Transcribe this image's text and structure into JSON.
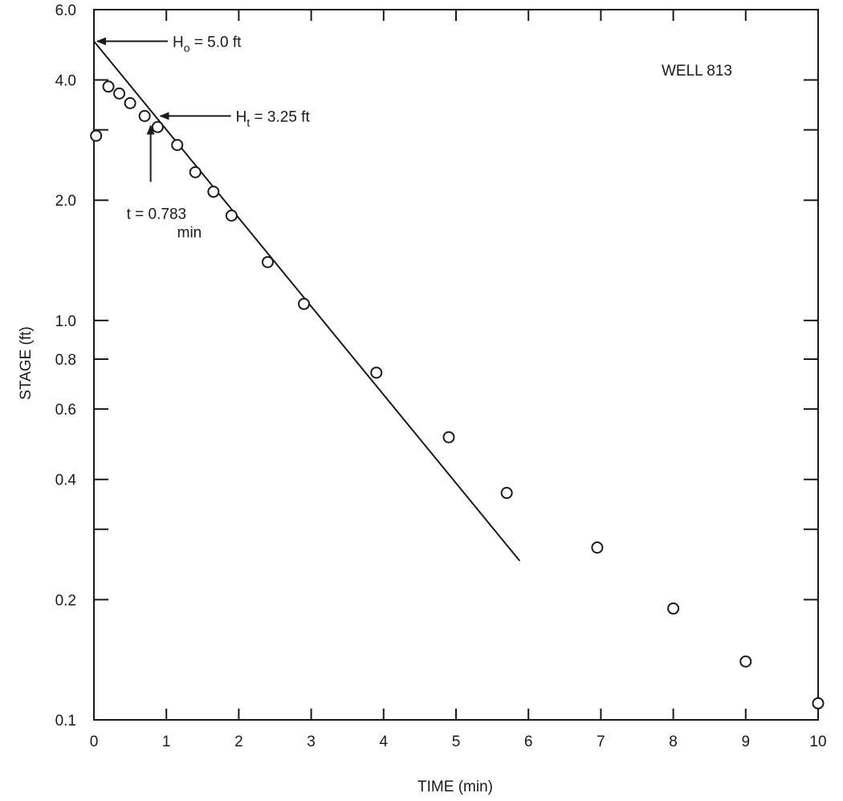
{
  "chart_data": {
    "type": "scatter",
    "title": "WELL 813",
    "xlabel": "TIME (min)",
    "ylabel": "STAGE (ft)",
    "xlim": [
      0,
      10
    ],
    "ylim": [
      0.1,
      6.0
    ],
    "y_scale": "log",
    "grid": false,
    "x_ticks": [
      "0",
      "1",
      "2",
      "3",
      "4",
      "5",
      "6",
      "7",
      "8",
      "9",
      "10"
    ],
    "y_tick_labels": [
      {
        "value": 6.0,
        "label": "6.0"
      },
      {
        "value": 4.0,
        "label": "4.0"
      },
      {
        "value": 2.0,
        "label": "2.0"
      },
      {
        "value": 1.0,
        "label": "1.0"
      },
      {
        "value": 0.8,
        "label": "0.8"
      },
      {
        "value": 0.6,
        "label": "0.6"
      },
      {
        "value": 0.4,
        "label": "0.4"
      },
      {
        "value": 0.2,
        "label": "0.2"
      },
      {
        "value": 0.1,
        "label": "0.1"
      }
    ],
    "y_minor_ticks": [
      3.0,
      0.3
    ],
    "points": [
      {
        "x": 0.03,
        "y": 2.9
      },
      {
        "x": 0.2,
        "y": 3.85
      },
      {
        "x": 0.35,
        "y": 3.7
      },
      {
        "x": 0.5,
        "y": 3.5
      },
      {
        "x": 0.7,
        "y": 3.25
      },
      {
        "x": 0.88,
        "y": 3.05
      },
      {
        "x": 1.15,
        "y": 2.75
      },
      {
        "x": 1.4,
        "y": 2.35
      },
      {
        "x": 1.65,
        "y": 2.1
      },
      {
        "x": 1.9,
        "y": 1.83
      },
      {
        "x": 2.4,
        "y": 1.4
      },
      {
        "x": 2.9,
        "y": 1.1
      },
      {
        "x": 3.9,
        "y": 0.74
      },
      {
        "x": 4.9,
        "y": 0.51
      },
      {
        "x": 5.7,
        "y": 0.37
      },
      {
        "x": 6.95,
        "y": 0.27
      },
      {
        "x": 8.0,
        "y": 0.19
      },
      {
        "x": 9.0,
        "y": 0.14
      },
      {
        "x": 10.0,
        "y": 0.11
      }
    ],
    "fit_line": {
      "x": [
        0,
        5.88
      ],
      "y": [
        5.0,
        0.25
      ]
    },
    "annotations": [
      {
        "name": "ho",
        "text_main": "H",
        "text_sub": "o",
        "text_rest": " = 5.0 ft",
        "target": {
          "x": 0,
          "y": 5.0
        }
      },
      {
        "name": "ht",
        "text_main": "H",
        "text_sub": "t",
        "text_rest": " = 3.25 ft",
        "target": {
          "x": 0.783,
          "y": 3.25
        }
      },
      {
        "name": "t",
        "line1": "t = 0.783",
        "line2": "min",
        "target": {
          "x": 0.783,
          "y": 3.25
        }
      }
    ]
  }
}
